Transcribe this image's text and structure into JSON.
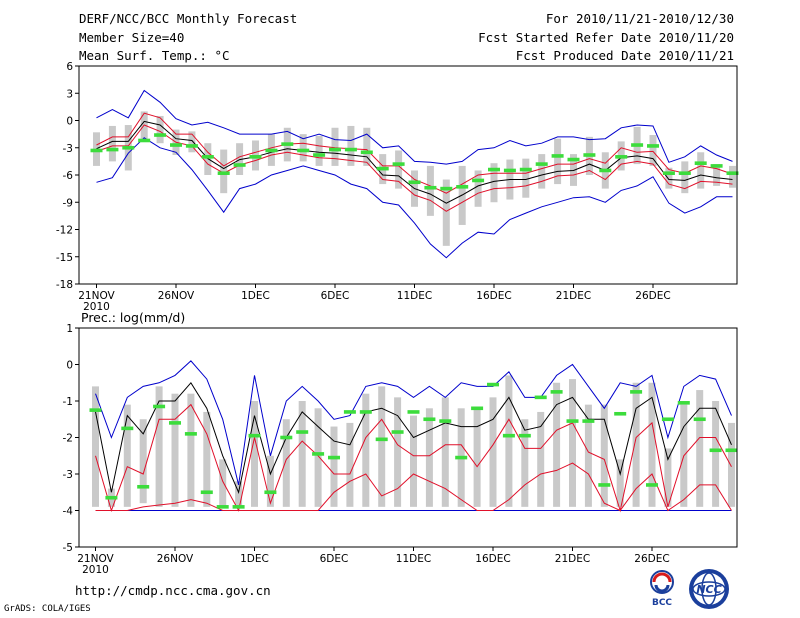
{
  "header": {
    "title_line1": "DERF/NCC/BCC Monthly Forecast",
    "title_line2": "Member Size=40",
    "title_line3": "Mean Surf. Temp.: °C",
    "period": "For 2010/11/21-2010/12/30",
    "started": "Fcst Started Refer Date 2010/11/20",
    "produced": "Fcst Produced Date 2010/11/21"
  },
  "footer": {
    "url": "http://cmdp.ncc.cma.gov.cn",
    "grads": "GrADS: COLA/IGES",
    "logo1": "BCC",
    "logo2": "NCC"
  },
  "colors": {
    "envelope": "#0000cc",
    "spread": "#e0102a",
    "mean": "#000000",
    "box": "#c9c9c9",
    "obs": "#3cdc3c"
  },
  "chart_data": [
    {
      "type": "line",
      "title": "Mean Surf. Temp.: °C",
      "x_ticks": [
        {
          "day": 0,
          "label": "21NOV",
          "sub": "2010"
        },
        {
          "day": 5,
          "label": "26NOV"
        },
        {
          "day": 10,
          "label": "1DEC"
        },
        {
          "day": 15,
          "label": "6DEC"
        },
        {
          "day": 20,
          "label": "11DEC"
        },
        {
          "day": 25,
          "label": "16DEC"
        },
        {
          "day": 30,
          "label": "21DEC"
        },
        {
          "day": 35,
          "label": "26DEC"
        }
      ],
      "ylim": [
        -18,
        6
      ],
      "y_ticks": [
        6,
        3,
        0,
        -3,
        -6,
        -9,
        -12,
        -15,
        -18
      ],
      "series": {
        "max": [
          0.3,
          1.2,
          0.3,
          3.3,
          2.0,
          0.2,
          -0.5,
          -0.2,
          -0.8,
          -1.5,
          -1.5,
          -1.5,
          -1.2,
          -2.0,
          -1.5,
          -2.1,
          -2.2,
          -1.5,
          -3.0,
          -2.8,
          -4.5,
          -4.6,
          -4.8,
          -4.5,
          -3.2,
          -3.0,
          -2.2,
          -2.8,
          -2.5,
          -1.8,
          -1.8,
          -2.1,
          -2.0,
          -0.8,
          -0.5,
          -0.6,
          -4.6,
          -4.0,
          -2.8,
          -3.8,
          -4.5
        ],
        "upper": [
          -2.7,
          -1.8,
          -1.8,
          0.8,
          0.3,
          -1.5,
          -1.5,
          -3.5,
          -5.0,
          -4.0,
          -3.5,
          -3.0,
          -2.6,
          -2.5,
          -2.8,
          -3.0,
          -3.1,
          -3.2,
          -5.0,
          -5.0,
          -6.5,
          -7.2,
          -8.0,
          -7.0,
          -6.0,
          -5.8,
          -5.8,
          -5.8,
          -5.3,
          -4.8,
          -4.8,
          -4.2,
          -4.7,
          -3.0,
          -3.5,
          -3.4,
          -5.4,
          -5.8,
          -5.0,
          -5.3,
          -5.9
        ],
        "mean": [
          -3.1,
          -2.3,
          -2.3,
          -0.1,
          -0.5,
          -2.0,
          -2.2,
          -4.2,
          -5.3,
          -4.3,
          -4.0,
          -3.5,
          -3.1,
          -3.3,
          -3.5,
          -3.6,
          -3.8,
          -4.0,
          -6.0,
          -6.1,
          -7.5,
          -8.1,
          -9.1,
          -8.2,
          -7.2,
          -6.7,
          -6.5,
          -6.5,
          -6.0,
          -5.6,
          -5.5,
          -4.8,
          -5.5,
          -4.1,
          -3.9,
          -4.2,
          -6.5,
          -6.6,
          -6.0,
          -6.3,
          -6.5
        ],
        "lower": [
          -3.4,
          -2.8,
          -2.8,
          -0.5,
          -1.2,
          -2.4,
          -2.8,
          -4.8,
          -5.8,
          -4.9,
          -4.4,
          -3.8,
          -3.5,
          -3.8,
          -4.1,
          -4.2,
          -4.4,
          -4.6,
          -6.5,
          -6.7,
          -8.2,
          -8.8,
          -10.0,
          -9.0,
          -8.0,
          -7.5,
          -7.4,
          -7.2,
          -6.7,
          -6.1,
          -6.0,
          -5.5,
          -6.5,
          -4.8,
          -4.5,
          -4.8,
          -7.0,
          -7.5,
          -6.7,
          -6.8,
          -7.0
        ],
        "min": [
          -6.8,
          -6.3,
          -3.6,
          -1.9,
          -3.0,
          -3.5,
          -5.4,
          -7.7,
          -10.1,
          -7.5,
          -7.0,
          -6.0,
          -5.5,
          -5.0,
          -5.5,
          -6.0,
          -7.0,
          -7.5,
          -9.0,
          -9.3,
          -11.3,
          -13.6,
          -15.1,
          -13.5,
          -12.3,
          -12.5,
          -10.9,
          -10.2,
          -9.5,
          -9.0,
          -8.5,
          -8.4,
          -9.0,
          -7.7,
          -7.2,
          -6.2,
          -9.1,
          -10.2,
          -9.5,
          -8.4,
          -8.4
        ]
      },
      "boxes": [
        [
          -5.0,
          -1.3
        ],
        [
          -4.5,
          -0.6
        ],
        [
          -5.5,
          -0.5
        ],
        [
          -2.0,
          1.0
        ],
        [
          -2.5,
          0.5
        ],
        [
          -3.8,
          -1.0
        ],
        [
          -3.5,
          -1.2
        ],
        [
          -6.0,
          -2.5
        ],
        [
          -8.0,
          -3.2
        ],
        [
          -6.0,
          -2.5
        ],
        [
          -5.5,
          -2.2
        ],
        [
          -5.0,
          -1.5
        ],
        [
          -4.5,
          -0.8
        ],
        [
          -4.5,
          -1.5
        ],
        [
          -5.0,
          -1.7
        ],
        [
          -5.0,
          -0.8
        ],
        [
          -5.0,
          -0.6
        ],
        [
          -5.0,
          -0.8
        ],
        [
          -7.0,
          -3.7
        ],
        [
          -7.5,
          -3.3
        ],
        [
          -9.5,
          -5.5
        ],
        [
          -10.5,
          -5.0
        ],
        [
          -13.8,
          -6.5
        ],
        [
          -11.5,
          -5.0
        ],
        [
          -9.5,
          -5.5
        ],
        [
          -9.0,
          -4.7
        ],
        [
          -8.7,
          -4.3
        ],
        [
          -8.5,
          -4.2
        ],
        [
          -7.5,
          -3.7
        ],
        [
          -7.0,
          -2.0
        ],
        [
          -7.2,
          -3.7
        ],
        [
          -6.0,
          -1.8
        ],
        [
          -7.5,
          -3.5
        ],
        [
          -5.5,
          -2.3
        ],
        [
          -4.8,
          -0.7
        ],
        [
          -5.0,
          -1.6
        ],
        [
          -7.5,
          -5.2
        ],
        [
          -8.0,
          -4.5
        ],
        [
          -7.5,
          -3.5
        ],
        [
          -7.2,
          -4.8
        ],
        [
          -7.4,
          -5.0
        ]
      ],
      "obs": [
        -3.3,
        -3.2,
        -3.0,
        -2.2,
        -1.6,
        -2.7,
        -2.8,
        -4.0,
        -5.8,
        -4.9,
        -4.0,
        -3.3,
        -2.6,
        -3.3,
        -3.8,
        -3.2,
        -3.2,
        -3.5,
        -5.3,
        -4.8,
        -6.8,
        -7.4,
        -7.5,
        -7.3,
        -6.6,
        -5.4,
        -5.5,
        -5.4,
        -4.8,
        -3.9,
        -4.3,
        -3.8,
        -5.5,
        -4.0,
        -2.7,
        -2.8,
        -5.8,
        -5.8,
        -4.7,
        -5.0,
        -5.8
      ]
    },
    {
      "type": "line",
      "title": "Prec.: log(mm/d)",
      "x_ticks": [
        {
          "day": 0,
          "label": "21NOV",
          "sub": "2010"
        },
        {
          "day": 5,
          "label": "26NOV"
        },
        {
          "day": 10,
          "label": "1DEC"
        },
        {
          "day": 15,
          "label": "6DEC"
        },
        {
          "day": 20,
          "label": "11DEC"
        },
        {
          "day": 25,
          "label": "16DEC"
        },
        {
          "day": 30,
          "label": "21DEC"
        },
        {
          "day": 35,
          "label": "26DEC"
        }
      ],
      "ylim": [
        -5,
        1
      ],
      "y_ticks": [
        1,
        0,
        -1,
        -2,
        -3,
        -4,
        -5
      ],
      "series": {
        "max": [
          -0.8,
          -2.0,
          -0.9,
          -0.6,
          -0.5,
          -0.3,
          0.1,
          -0.4,
          -1.5,
          -3.3,
          -0.3,
          -2.5,
          -1.0,
          -0.6,
          -1.0,
          -1.5,
          -1.4,
          -0.6,
          -0.5,
          -0.6,
          -0.9,
          -0.6,
          -0.9,
          -0.5,
          -0.6,
          -0.6,
          -0.2,
          -0.9,
          -0.9,
          -0.3,
          0.0,
          -0.6,
          -1.2,
          -0.5,
          -0.6,
          -0.3,
          -2.0,
          -0.6,
          -0.3,
          -0.4,
          -1.4
        ],
        "mean": [
          -1.3,
          -3.5,
          -1.4,
          -1.9,
          -1.0,
          -1.0,
          -0.5,
          -1.2,
          -2.5,
          -3.5,
          -1.4,
          -3.0,
          -2.0,
          -1.3,
          -1.7,
          -2.1,
          -2.2,
          -1.3,
          -1.2,
          -1.4,
          -2.0,
          -1.8,
          -1.6,
          -1.7,
          -1.7,
          -1.5,
          -0.9,
          -1.8,
          -1.7,
          -1.1,
          -0.9,
          -1.5,
          -1.5,
          -3.0,
          -1.2,
          -0.9,
          -2.6,
          -1.7,
          -1.2,
          -1.2,
          -2.2
        ],
        "upper": [
          -2.5,
          -4.0,
          -2.8,
          -3.0,
          -1.5,
          -1.5,
          -1.1,
          -1.9,
          -3.2,
          -4.0,
          -2.0,
          -3.8,
          -2.6,
          -2.1,
          -2.5,
          -3.0,
          -3.0,
          -2.0,
          -1.5,
          -2.2,
          -2.5,
          -2.5,
          -2.2,
          -2.2,
          -2.8,
          -2.2,
          -1.5,
          -2.3,
          -2.3,
          -1.8,
          -1.6,
          -2.4,
          -2.6,
          -4.0,
          -2.0,
          -1.6,
          -3.9,
          -2.5,
          -2.0,
          -2.0,
          -2.8
        ],
        "lower": [
          -4.0,
          -4.0,
          -4.0,
          -3.9,
          -3.85,
          -3.8,
          -3.7,
          -3.8,
          -4.0,
          -4.0,
          -4.0,
          -4.0,
          -4.0,
          -4.0,
          -4.0,
          -3.5,
          -3.2,
          -3.0,
          -3.6,
          -3.4,
          -3.0,
          -3.2,
          -3.4,
          -3.7,
          -4.0,
          -4.0,
          -3.7,
          -3.3,
          -3.0,
          -2.9,
          -2.7,
          -3.0,
          -3.8,
          -4.0,
          -3.4,
          -3.0,
          -4.0,
          -3.7,
          -3.3,
          -3.3,
          -4.0
        ],
        "min": [
          -4.0,
          -4.0,
          -4.0,
          -4.0,
          -4.0,
          -4.0,
          -4.0,
          -4.0,
          -4.0,
          -4.0,
          -4.0,
          -4.0,
          -4.0,
          -4.0,
          -4.0,
          -4.0,
          -4.0,
          -4.0,
          -4.0,
          -4.0,
          -4.0,
          -4.0,
          -4.0,
          -4.0,
          -4.0,
          -4.0,
          -4.0,
          -4.0,
          -4.0,
          -4.0,
          -4.0,
          -4.0,
          -4.0,
          -4.0,
          -4.0,
          -4.0,
          -4.0,
          -4.0,
          -4.0,
          -4.0,
          -4.0
        ]
      },
      "boxes": [
        [
          -3.9,
          -0.6
        ],
        [
          -3.9,
          -3.4
        ],
        [
          -3.9,
          -1.1
        ],
        [
          -3.8,
          -1.5
        ],
        [
          -3.9,
          -0.6
        ],
        [
          -3.9,
          -0.8
        ],
        [
          -3.9,
          -0.8
        ],
        [
          -3.9,
          -1.3
        ],
        [
          -3.9,
          -2.6
        ],
        [
          -3.9,
          -3.2
        ],
        [
          -3.9,
          -1.0
        ],
        [
          -3.9,
          -2.5
        ],
        [
          -3.9,
          -1.5
        ],
        [
          -3.9,
          -1.0
        ],
        [
          -3.9,
          -1.2
        ],
        [
          -3.9,
          -1.7
        ],
        [
          -3.9,
          -1.6
        ],
        [
          -3.9,
          -0.8
        ],
        [
          -3.9,
          -0.6
        ],
        [
          -3.9,
          -0.9
        ],
        [
          -3.9,
          -1.4
        ],
        [
          -3.9,
          -1.2
        ],
        [
          -3.9,
          -0.9
        ],
        [
          -3.9,
          -1.2
        ],
        [
          -3.9,
          -1.2
        ],
        [
          -3.9,
          -0.9
        ],
        [
          -3.9,
          -0.3
        ],
        [
          -3.9,
          -1.5
        ],
        [
          -3.9,
          -1.3
        ],
        [
          -3.9,
          -0.5
        ],
        [
          -3.9,
          -0.4
        ],
        [
          -3.9,
          -1.1
        ],
        [
          -3.9,
          -1.1
        ],
        [
          -3.9,
          -2.6
        ],
        [
          -3.9,
          -0.5
        ],
        [
          -3.9,
          -0.5
        ],
        [
          -3.9,
          -2.3
        ],
        [
          -3.9,
          -1.1
        ],
        [
          -3.9,
          -0.7
        ],
        [
          -3.9,
          -1.0
        ],
        [
          -3.9,
          -1.6
        ]
      ],
      "obs": [
        -1.25,
        -3.65,
        -1.75,
        -3.35,
        -1.15,
        -1.6,
        -1.9,
        -3.5,
        -3.9,
        -3.9,
        -1.95,
        -3.5,
        -2.0,
        -1.85,
        -2.45,
        -2.55,
        -1.3,
        -1.3,
        -2.05,
        -1.85,
        -1.3,
        -1.5,
        -1.55,
        -2.55,
        -1.2,
        -0.55,
        -1.95,
        -1.95,
        -0.9,
        -0.75,
        -1.55,
        -1.55,
        -3.3,
        -1.35,
        -0.75,
        -3.3,
        -1.5,
        -1.05,
        -1.5,
        -2.35,
        -2.35
      ]
    }
  ]
}
